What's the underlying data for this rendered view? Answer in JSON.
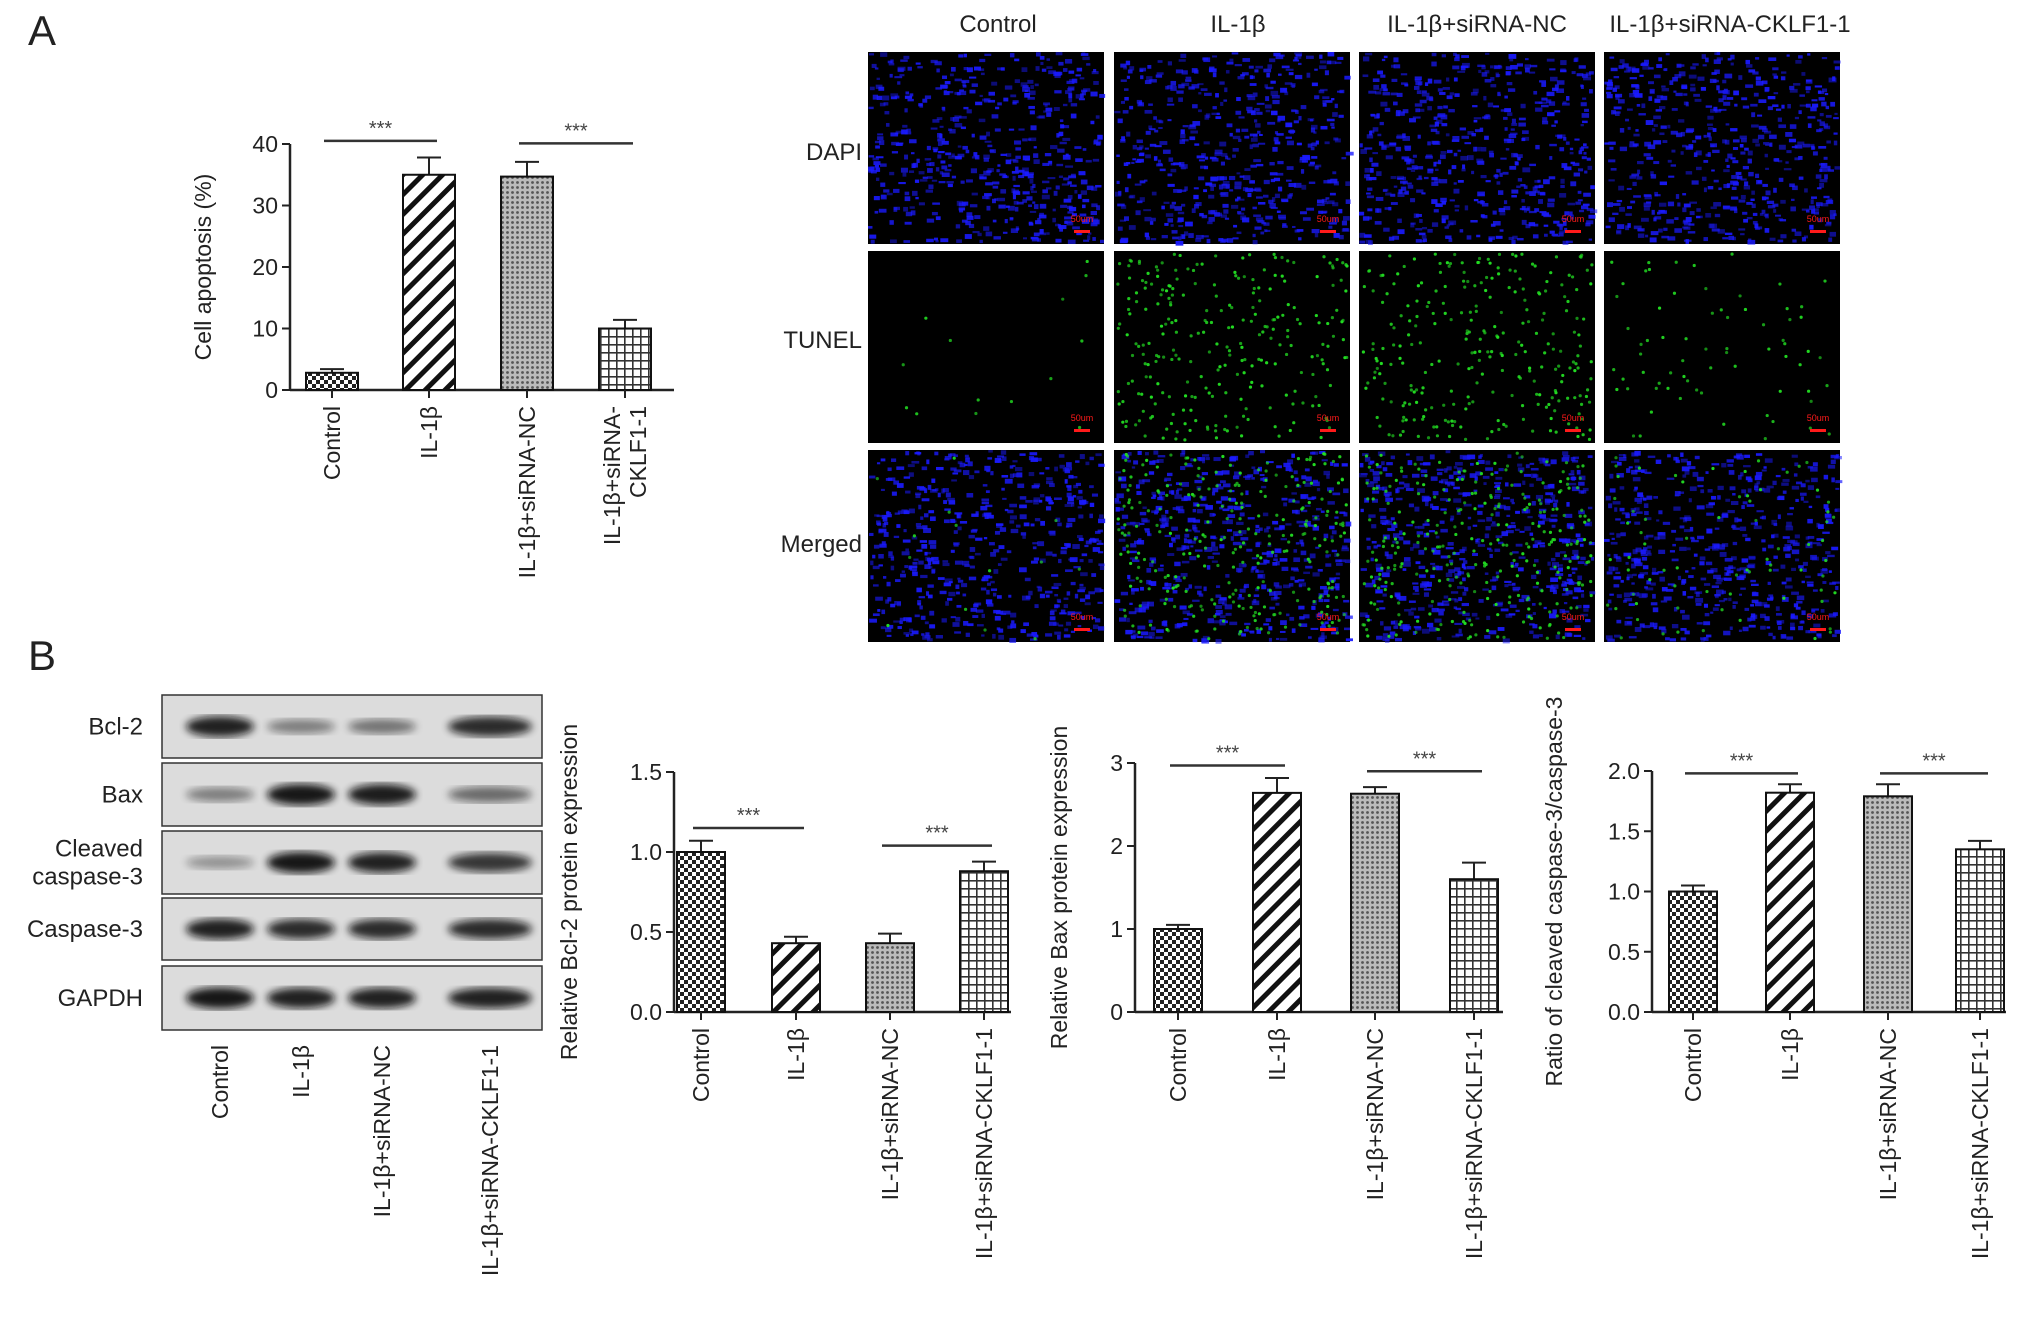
{
  "panels": {
    "a": "A",
    "b": "B"
  },
  "groups": [
    "Control",
    "IL-1β",
    "IL-1β+siRNA-NC",
    "IL-1β+siRNA-CKLF1-1"
  ],
  "groups_wrapped_a": [
    [
      "Control"
    ],
    [
      "IL-1β"
    ],
    [
      "IL-1β+siRNA-NC"
    ],
    [
      "IL-1β+siRNA-",
      "CKLF1-1"
    ]
  ],
  "microscopy": {
    "columns": [
      "Control",
      "IL-1β",
      "IL-1β+siRNA-NC",
      "IL-1β+siRNA-CKLF1-1"
    ],
    "rows": [
      "DAPI",
      "TUNEL",
      "Merged"
    ],
    "scale_bar": "50um",
    "colors": {
      "dapi": "#1a1aff",
      "tunel": "#22dd22",
      "scale": "#ff1a1a"
    }
  },
  "western_blot": {
    "bands": [
      "Bcl-2",
      "Bax",
      "Cleaved caspase-3",
      "Caspase-3",
      "GAPDH"
    ],
    "band_label_lines": [
      [
        "Bcl-2"
      ],
      [
        "Bax"
      ],
      [
        "Cleaved",
        "caspase-3"
      ],
      [
        "Caspase-3"
      ],
      [
        "GAPDH"
      ]
    ],
    "lanes": [
      "Control",
      "IL-1β",
      "IL-1β+siRNA-NC",
      "IL-1β+siRNA-CKLF1-1"
    ]
  },
  "chart_data": [
    {
      "type": "bar",
      "ylabel": "Cell apoptosis (%)",
      "categories": [
        "Control",
        "IL-1β",
        "IL-1β+siRNA-NC",
        "IL-1β+siRNA-CKLF1-1"
      ],
      "values": [
        2.8,
        35.0,
        34.7,
        10.0
      ],
      "errors": [
        0.6,
        2.8,
        2.4,
        1.4
      ],
      "ylim": [
        0,
        40
      ],
      "yticks": [
        0,
        10,
        20,
        30,
        40
      ],
      "significance": [
        {
          "pair": [
            0,
            1
          ],
          "label": "***"
        },
        {
          "pair": [
            2,
            3
          ],
          "label": "***"
        }
      ],
      "patterns": [
        "checker",
        "diagonal",
        "dots",
        "grid"
      ]
    },
    {
      "type": "bar",
      "ylabel": "Relative Bcl-2 protein expression",
      "categories": [
        "Control",
        "IL-1β",
        "IL-1β+siRNA-NC",
        "IL-1β+siRNA-CKLF1-1"
      ],
      "values": [
        1.0,
        0.43,
        0.43,
        0.88
      ],
      "errors": [
        0.07,
        0.04,
        0.06,
        0.06
      ],
      "ylim": [
        0,
        1.5
      ],
      "yticks": [
        "0.0",
        "0.5",
        "1.0",
        "1.5"
      ],
      "significance": [
        {
          "pair": [
            0,
            1
          ],
          "label": "***"
        },
        {
          "pair": [
            2,
            3
          ],
          "label": "***"
        }
      ],
      "patterns": [
        "checker",
        "diagonal",
        "dots",
        "grid"
      ]
    },
    {
      "type": "bar",
      "ylabel": "Relative Bax protein expression",
      "categories": [
        "Control",
        "IL-1β",
        "IL-1β+siRNA-NC",
        "IL-1β+siRNA-CKLF1-1"
      ],
      "values": [
        1.0,
        2.64,
        2.63,
        1.6
      ],
      "errors": [
        0.05,
        0.18,
        0.08,
        0.2
      ],
      "ylim": [
        0,
        3
      ],
      "yticks": [
        "0",
        "1",
        "2",
        "3"
      ],
      "significance": [
        {
          "pair": [
            0,
            1
          ],
          "label": "***"
        },
        {
          "pair": [
            2,
            3
          ],
          "label": "***"
        }
      ],
      "patterns": [
        "checker",
        "diagonal",
        "dots",
        "grid"
      ]
    },
    {
      "type": "bar",
      "ylabel": "Ratio of cleaved caspase-3/caspase-3",
      "categories": [
        "Control",
        "IL-1β",
        "IL-1β+siRNA-NC",
        "IL-1β+siRNA-CKLF1-1"
      ],
      "values": [
        1.0,
        1.82,
        1.79,
        1.35
      ],
      "errors": [
        0.05,
        0.07,
        0.1,
        0.07
      ],
      "ylim": [
        0,
        2.0
      ],
      "yticks": [
        "0.0",
        "0.5",
        "1.0",
        "1.5",
        "2.0"
      ],
      "significance": [
        {
          "pair": [
            0,
            1
          ],
          "label": "***"
        },
        {
          "pair": [
            2,
            3
          ],
          "label": "***"
        }
      ],
      "patterns": [
        "checker",
        "diagonal",
        "dots",
        "grid"
      ]
    }
  ]
}
